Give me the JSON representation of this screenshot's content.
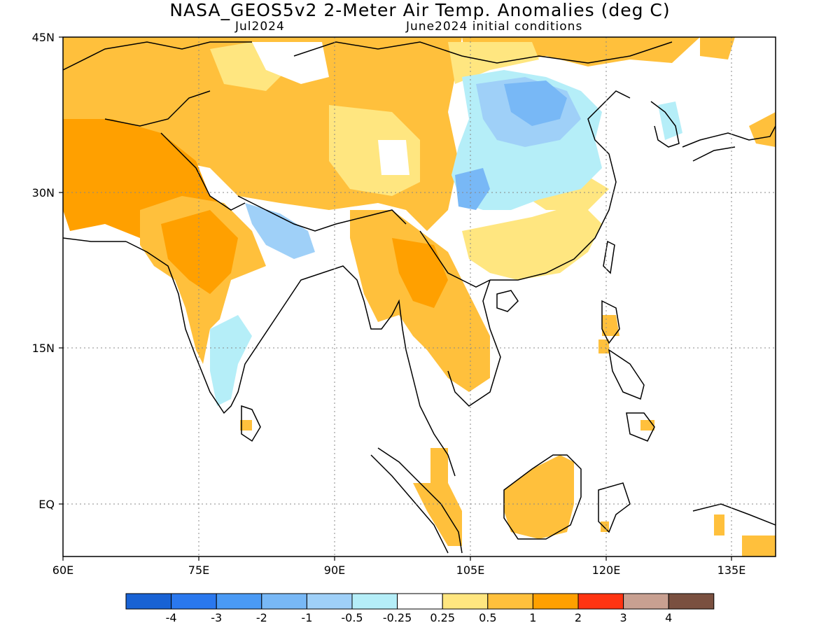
{
  "title": "NASA_GEOS5v2 2-Meter Air Temp. Anomalies (deg C)",
  "subtitle_left": "Jul2024",
  "subtitle_right": "June2024 initial conditions",
  "lat_labels": [
    "45N",
    "30N",
    "15N",
    "EQ"
  ],
  "lon_labels": [
    "60E",
    "75E",
    "90E",
    "105E",
    "120E",
    "135E"
  ],
  "colorbar": {
    "colors": [
      "#1862d4",
      "#2a78ee",
      "#4a9af5",
      "#78b8f6",
      "#9fd0f8",
      "#b5eef8",
      "#ffffff",
      "#ffe680",
      "#ffc03c",
      "#ffa000",
      "#ff3412",
      "#c8a091",
      "#7a5040"
    ],
    "labels": [
      "-4",
      "-3",
      "-2",
      "-1",
      "-0.5",
      "-0.25",
      "0.25",
      "0.5",
      "1",
      "2",
      "3",
      "4"
    ]
  },
  "palette": {
    "orange_dark": "#ffa000",
    "orange": "#ffc03c",
    "yellow": "#ffe680",
    "light_blue": "#b5eef8",
    "sky_blue": "#9fd0f8",
    "blue": "#78b8f6",
    "coast": "#000000"
  }
}
